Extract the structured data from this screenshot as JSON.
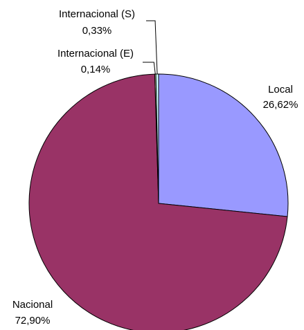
{
  "chart_data": {
    "type": "pie",
    "categories": [
      "Local",
      "Nacional",
      "Internacional (E)",
      "Internacional (S)"
    ],
    "values": [
      26.62,
      72.9,
      0.14,
      0.33
    ],
    "value_labels": [
      "26,62%",
      "72,90%",
      "0,14%",
      "0,33%"
    ],
    "colors": [
      "#9999ff",
      "#993366",
      "#ffffcc",
      "#ccffff"
    ]
  }
}
